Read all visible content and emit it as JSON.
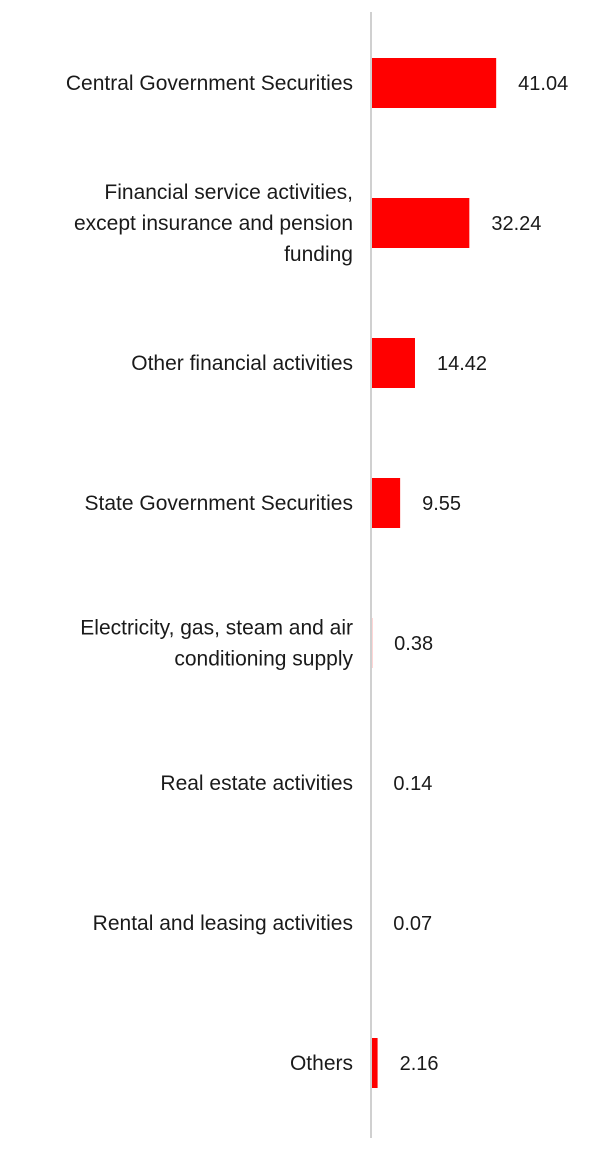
{
  "chart_data": {
    "type": "bar",
    "orientation": "horizontal",
    "title": "",
    "xlabel": "",
    "ylabel": "",
    "categories": [
      [
        "Central Government Securities"
      ],
      [
        "Financial service activities,",
        "except insurance and pension",
        "funding"
      ],
      [
        "Other financial activities"
      ],
      [
        "State Government Securities"
      ],
      [
        "Electricity, gas, steam and air",
        "conditioning supply"
      ],
      [
        "Real estate activities"
      ],
      [
        "Rental and leasing activities"
      ],
      [
        "Others"
      ]
    ],
    "values": [
      41.04,
      32.24,
      14.42,
      9.55,
      0.38,
      0.14,
      0.07,
      2.16
    ],
    "value_labels": [
      "41.04",
      "32.24",
      "14.42",
      "9.55",
      "0.38",
      "0.14",
      "0.07",
      "2.16"
    ],
    "xlim": [
      0,
      50
    ],
    "grid": false,
    "legend": "none",
    "bar_color": "#ff0000",
    "axis_color": "#d0d0d0"
  }
}
